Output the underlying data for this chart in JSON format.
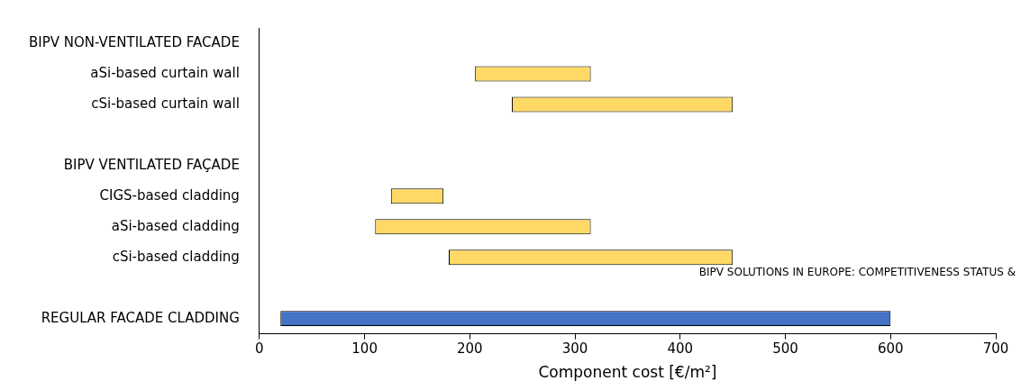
{
  "chart_data": {
    "type": "bar",
    "orientation": "horizontal",
    "xlabel": "Component cost [€/m²]",
    "categories": [
      "BIPV NON-VENTILATED FACADE",
      "aSi-based curtain wall",
      "cSi-based curtain wall",
      null,
      "BIPV VENTILATED FAÇADE",
      "CIGS-based cladding",
      "aSi-based cladding",
      "cSi-based cladding",
      null,
      "REGULAR FACADE CLADDING"
    ],
    "base": [
      null,
      205,
      240,
      null,
      null,
      125,
      110,
      180,
      null,
      20
    ],
    "values": [
      null,
      110,
      210,
      null,
      null,
      50,
      205,
      270,
      null,
      580
    ],
    "colors": [
      "#ffd966",
      "#ffd966",
      "#ffd966",
      "#ffd966",
      "#ffd966",
      "#ffd966",
      "#ffd966",
      "#ffd966",
      "#ffd966",
      "#4472c4"
    ],
    "xlim": [
      0,
      700
    ],
    "xticks": [
      0,
      100,
      200,
      300,
      400,
      500,
      600,
      700
    ],
    "grid": false,
    "legend": false,
    "annotations": [
      "BIPV SOLUTIONS IN EUROPE: COMPETITIVENESS STATUS &"
    ]
  }
}
